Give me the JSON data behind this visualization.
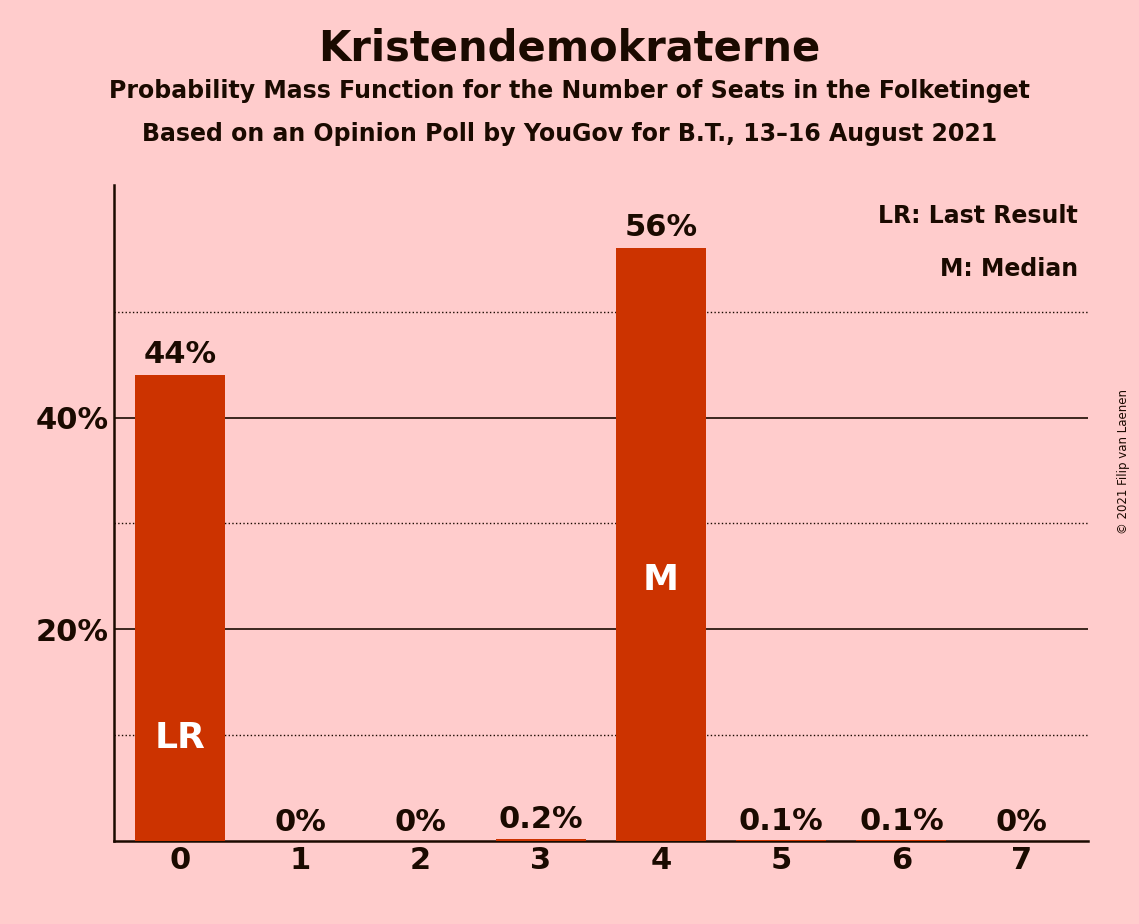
{
  "title": "Kristendemokraterne",
  "subtitle1": "Probability Mass Function for the Number of Seats in the Folketinget",
  "subtitle2": "Based on an Opinion Poll by YouGov for B.T., 13–16 August 2021",
  "copyright": "© 2021 Filip van Laenen",
  "categories": [
    0,
    1,
    2,
    3,
    4,
    5,
    6,
    7
  ],
  "values": [
    0.44,
    0.0,
    0.0,
    0.002,
    0.56,
    0.001,
    0.001,
    0.0
  ],
  "bar_labels": [
    "44%",
    "0%",
    "0%",
    "0.2%",
    "56%",
    "0.1%",
    "0.1%",
    "0%"
  ],
  "bar_color": "#CC3300",
  "background_color": "#FFCCCC",
  "label_inside_color": "white",
  "label_outside_color": "#1a0a00",
  "lr_bar": 0,
  "median_bar": 4,
  "lr_label": "LR",
  "median_label": "M",
  "legend_lr": "LR: Last Result",
  "legend_m": "M: Median",
  "yticks": [
    0.0,
    0.1,
    0.2,
    0.3,
    0.4,
    0.5
  ],
  "ytick_labels": [
    "",
    "",
    "20%",
    "",
    "40%",
    ""
  ],
  "solid_gridlines": [
    0.2,
    0.4
  ],
  "dotted_gridlines": [
    0.1,
    0.3,
    0.5
  ],
  "ylim": [
    0,
    0.62
  ],
  "xlim": [
    -0.55,
    7.55
  ],
  "title_fontsize": 30,
  "subtitle_fontsize": 17,
  "axis_tick_fontsize": 22,
  "bar_label_fontsize": 22,
  "lr_m_fontsize": 26,
  "legend_fontsize": 17,
  "grid_color": "#1a0a00",
  "bar_width": 0.75
}
